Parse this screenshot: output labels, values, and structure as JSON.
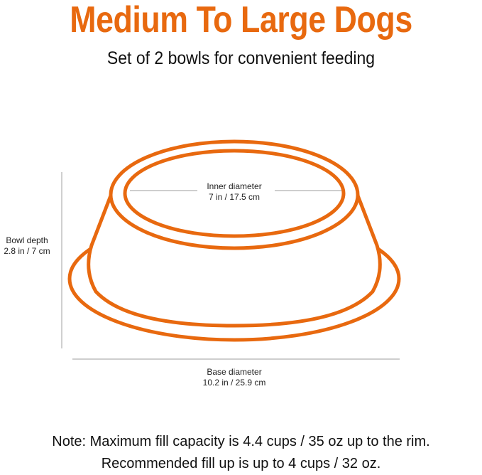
{
  "title": "Medium To Large Dogs",
  "subtitle": "Set of 2 bowls for convenient feeding",
  "dimensions": {
    "inner_diameter": {
      "label": "Inner diameter",
      "value": "7 in / 17.5 cm"
    },
    "bowl_depth": {
      "label": "Bowl depth",
      "value": "2.8 in / 7 cm"
    },
    "base_diameter": {
      "label": "Base diameter",
      "value": "10.2 in / 25.9 cm"
    }
  },
  "notes": [
    "Note: Maximum fill capacity is 4.4 cups / 35 oz up to the rim.",
    "Recommended fill up is up to 4 cups / 32 oz."
  ],
  "colors": {
    "accent": "#e8690f",
    "dimension_line": "#b0b0b0"
  }
}
